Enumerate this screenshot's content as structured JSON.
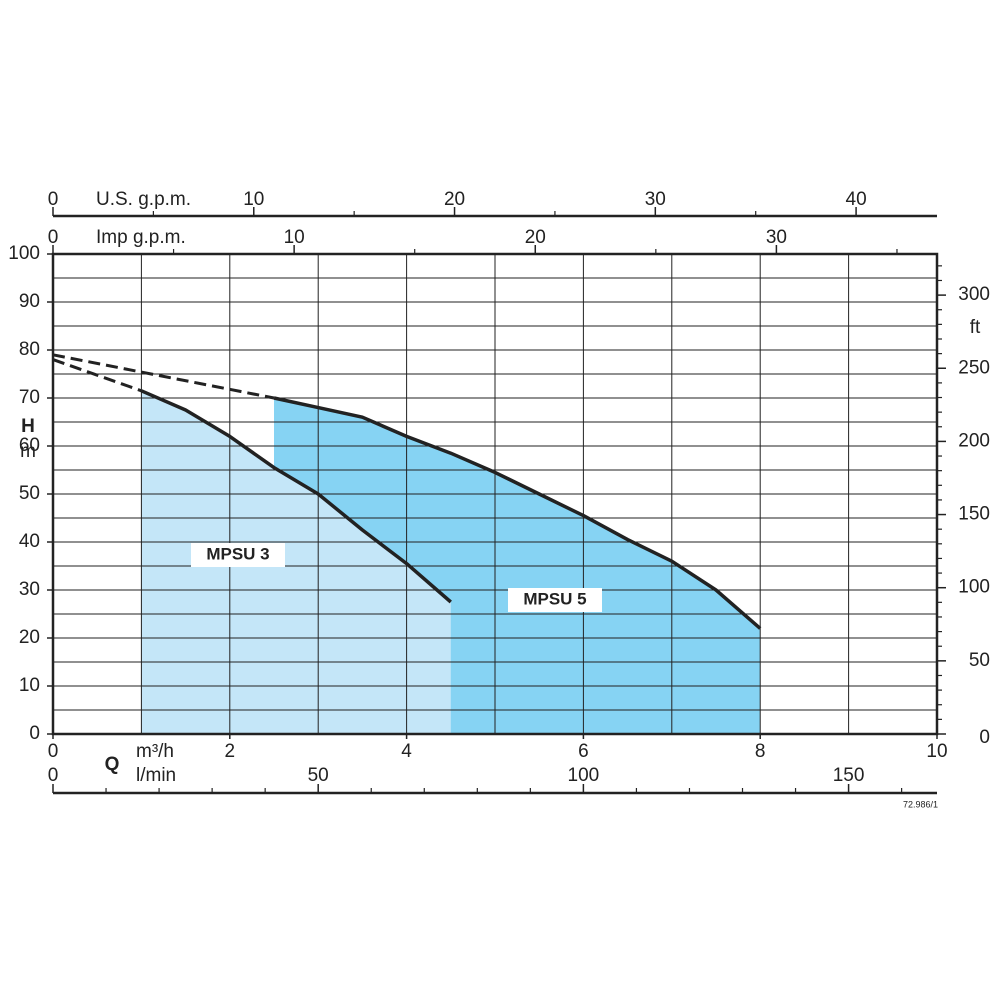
{
  "chart_data": {
    "type": "line",
    "x_symbol": "Q",
    "x_label": "m³/h",
    "xlim": [
      0,
      10
    ],
    "xticks": [
      0,
      2,
      4,
      6,
      8,
      10
    ],
    "xgrid": [
      1,
      2,
      3,
      4,
      5,
      6,
      7,
      8,
      9
    ],
    "y_symbol": "H",
    "y_label": "m",
    "ylim": [
      0,
      100
    ],
    "yticks": [
      0,
      10,
      20,
      30,
      40,
      50,
      60,
      70,
      80,
      90,
      100
    ],
    "ygrid": [
      5,
      10,
      15,
      20,
      25,
      30,
      35,
      40,
      45,
      50,
      55,
      60,
      65,
      70,
      75,
      80,
      85,
      90,
      95
    ],
    "x2": {
      "label": "U.S. g.p.m.",
      "lim": [
        0,
        44.03
      ],
      "ticks": [
        0,
        10,
        20,
        30,
        40
      ],
      "minor": [
        5,
        15,
        25,
        35
      ]
    },
    "x3": {
      "label": "Imp g.p.m.",
      "lim": [
        0,
        36.66
      ],
      "ticks": [
        0,
        10,
        20,
        30
      ],
      "minor": [
        5,
        15,
        25,
        35
      ]
    },
    "x4": {
      "label": "l/min",
      "lim": [
        0,
        166.67
      ],
      "ticks": [
        0,
        50,
        100,
        150
      ],
      "minor": [
        10,
        20,
        30,
        40,
        60,
        70,
        80,
        90,
        110,
        120,
        130,
        140,
        160
      ]
    },
    "y2": {
      "label": "ft",
      "lim": [
        0,
        328.1
      ],
      "ticks": [
        0,
        50,
        100,
        150,
        200,
        250,
        300
      ],
      "minor": [
        10,
        20,
        30,
        40,
        60,
        70,
        80,
        90,
        110,
        120,
        130,
        140,
        160,
        170,
        180,
        190,
        210,
        220,
        230,
        240,
        260,
        270,
        280,
        290,
        310,
        320
      ]
    },
    "series": [
      {
        "name": "MPSU 5",
        "color": "#86d3f3",
        "dashed_x": [
          0
        ],
        "dashed_values": [
          79
        ],
        "x": [
          2.5,
          3,
          3.5,
          4,
          4.5,
          5,
          5.5,
          6,
          6.5,
          7,
          7.5,
          8
        ],
        "values": [
          70,
          68,
          66,
          62,
          58.5,
          54.5,
          50,
          45.5,
          40.5,
          36,
          30,
          22
        ]
      },
      {
        "name": "MPSU 3",
        "color": "#c4e6f8",
        "dashed_x": [
          0
        ],
        "dashed_values": [
          78
        ],
        "x": [
          1,
          1.5,
          2,
          2.5,
          3,
          3.5,
          4,
          4.5
        ],
        "values": [
          71.5,
          67.5,
          62,
          55.5,
          50,
          42.5,
          35.5,
          27.5
        ]
      }
    ],
    "code": "72.986/1"
  }
}
